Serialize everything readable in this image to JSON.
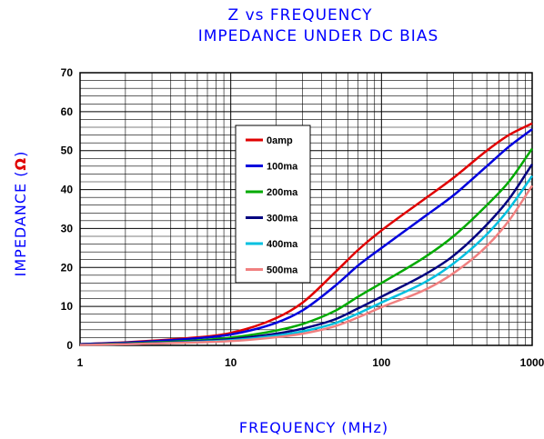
{
  "chart_data": {
    "type": "line",
    "title": "Z vs FREQUENCY",
    "subtitle": "IMPEDANCE UNDER DC BIAS",
    "xlabel": "FREQUENCY (MHz)",
    "ylabel": "IMPEDANCE (",
    "ylabel_unit": "Ω",
    "ylabel_close": ")",
    "x_scale": "log",
    "xlim": [
      1,
      1000
    ],
    "ylim": [
      0,
      70
    ],
    "x_ticks": [
      1,
      10,
      100,
      1000
    ],
    "x_tick_labels": [
      "1",
      "10",
      "100",
      "1000"
    ],
    "y_ticks": [
      0,
      10,
      20,
      30,
      40,
      50,
      60,
      70
    ],
    "y_tick_labels": [
      "0",
      "10",
      "20",
      "30",
      "40",
      "50",
      "60",
      "70"
    ],
    "grid": true,
    "legend_position": "upper-left-inside",
    "x": [
      1,
      2,
      5,
      10,
      20,
      30,
      50,
      70,
      100,
      200,
      300,
      500,
      700,
      1000
    ],
    "series": [
      {
        "name": "0amp",
        "color": "#e00000",
        "values": [
          0.3,
          0.8,
          1.8,
          3.2,
          7.0,
          11.0,
          19.0,
          24.5,
          29.5,
          38.0,
          43.0,
          50.0,
          54.0,
          57.0
        ]
      },
      {
        "name": "100ma",
        "color": "#0000dd",
        "values": [
          0.3,
          0.7,
          1.6,
          2.8,
          5.8,
          9.0,
          15.5,
          20.5,
          25.0,
          33.5,
          38.5,
          46.0,
          51.0,
          55.5
        ]
      },
      {
        "name": "200ma",
        "color": "#00aa00",
        "values": [
          0.2,
          0.5,
          1.1,
          2.0,
          3.8,
          5.5,
          9.0,
          12.5,
          16.0,
          23.0,
          28.0,
          36.0,
          42.0,
          50.5
        ]
      },
      {
        "name": "300ma",
        "color": "#000080",
        "values": [
          0.2,
          0.4,
          0.9,
          1.6,
          3.0,
          4.3,
          6.8,
          9.5,
          12.5,
          18.5,
          23.0,
          31.0,
          37.5,
          46.5
        ]
      },
      {
        "name": "400ma",
        "color": "#00c0e0",
        "values": [
          0.1,
          0.3,
          0.8,
          1.3,
          2.5,
          3.6,
          5.8,
          8.2,
          11.0,
          16.5,
          21.0,
          28.5,
          35.0,
          43.5
        ]
      },
      {
        "name": "500ma",
        "color": "#f08080",
        "values": [
          0.1,
          0.3,
          0.7,
          1.1,
          2.1,
          3.0,
          5.0,
          7.2,
          9.8,
          14.5,
          18.5,
          25.5,
          32.0,
          41.0
        ]
      }
    ]
  }
}
